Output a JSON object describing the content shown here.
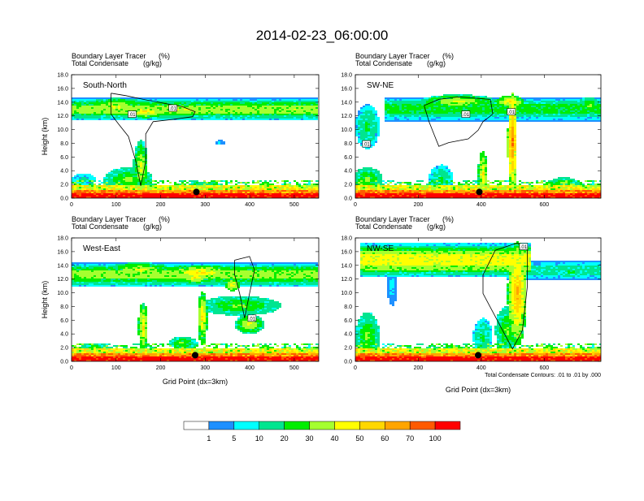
{
  "title": "2014-02-23_06:00:00",
  "colorbar": {
    "labels": [
      "1",
      "5",
      "10",
      "20",
      "30",
      "40",
      "50",
      "60",
      "70",
      "100"
    ],
    "colors": [
      "#ffffff",
      "#1e90ff",
      "#00ffff",
      "#00e58f",
      "#00ee00",
      "#a5ff2f",
      "#ffff00",
      "#ffd700",
      "#ffa500",
      "#ff5a00",
      "#ff0000"
    ]
  },
  "footnote": "Total Condensate Contours: .01 to .01 by .000",
  "chart_data": [
    {
      "type": "heatmap",
      "id": "south-north",
      "label": "South-North",
      "field_label": "Boundary Layer Tracer",
      "field_unit": "(%)",
      "contour_label": "Total Condensate",
      "contour_unit": "(g/kg)",
      "ylabel": "Height (km)",
      "xlabel": "",
      "xlim": [
        0,
        555
      ],
      "ylim": [
        0,
        18
      ],
      "xticks": [
        "0",
        "100",
        "200",
        "300",
        "400",
        "500"
      ],
      "yticks": [
        "0.0",
        "2.0",
        "4.0",
        "6.0",
        "8.0",
        "10.0",
        "12.0",
        "14.0",
        "16.0",
        "18.0"
      ],
      "contour_labels": [
        ".01",
        ".01"
      ],
      "marker_x": 280
    },
    {
      "type": "heatmap",
      "id": "sw-ne",
      "label": "SW-NE",
      "field_label": "Boundary Layer Tracer",
      "field_unit": "(%)",
      "contour_label": "Total Condensate",
      "contour_unit": "(g/kg)",
      "ylabel": "",
      "xlabel": "",
      "xlim": [
        0,
        780
      ],
      "ylim": [
        0,
        18
      ],
      "xticks": [
        "0",
        "200",
        "400",
        "600"
      ],
      "yticks": [
        "0.0",
        "2.0",
        "4.0",
        "6.0",
        "8.0",
        "10.0",
        "12.0",
        "14.0",
        "16.0",
        "18.0"
      ],
      "contour_labels": [
        ".01",
        ".01",
        ".01"
      ],
      "marker_x": 395
    },
    {
      "type": "heatmap",
      "id": "west-east",
      "label": "West-East",
      "field_label": "Boundary Layer Tracer",
      "field_unit": "(%)",
      "contour_label": "Total Condensate",
      "contour_unit": "(g/kg)",
      "ylabel": "Height (km)",
      "xlabel": "Grid Point (dx=3km)",
      "xlim": [
        0,
        555
      ],
      "ylim": [
        0,
        18
      ],
      "xticks": [
        "0",
        "100",
        "200",
        "300",
        "400",
        "500"
      ],
      "yticks": [
        "0.0",
        "2.0",
        "4.0",
        "6.0",
        "8.0",
        "10.0",
        "12.0",
        "14.0",
        "16.0",
        "18.0"
      ],
      "contour_labels": [
        ".01"
      ],
      "marker_x": 280
    },
    {
      "type": "heatmap",
      "id": "nw-se",
      "label": "NW-SE",
      "field_label": "Boundary Layer Tracer",
      "field_unit": "(%)",
      "contour_label": "Total Condensate",
      "contour_unit": "(g/kg)",
      "ylabel": "",
      "xlabel": "Grid Point (dx=3km)",
      "xlim": [
        0,
        780
      ],
      "ylim": [
        0,
        18
      ],
      "xticks": [
        "0",
        "200",
        "400",
        "600"
      ],
      "yticks": [
        "0.0",
        "2.0",
        "4.0",
        "6.0",
        "8.0",
        "10.0",
        "12.0",
        "14.0",
        "16.0",
        "18.0"
      ],
      "contour_labels": [
        ".01"
      ],
      "marker_x": 390
    }
  ]
}
